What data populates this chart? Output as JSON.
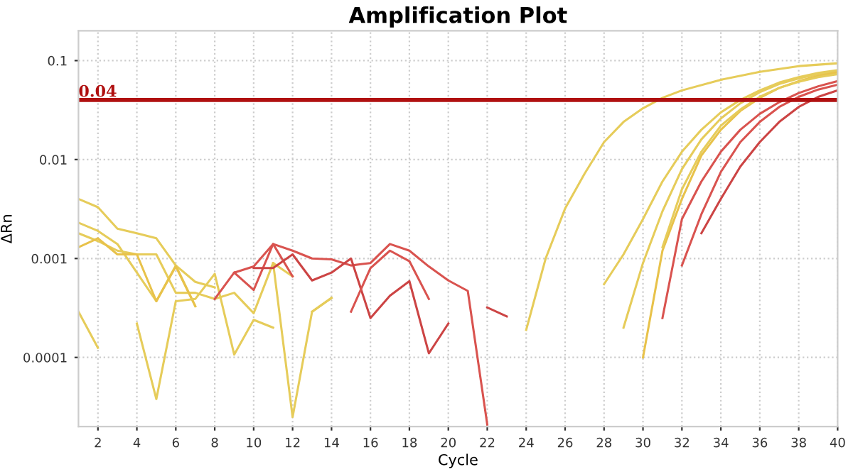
{
  "chart_data": {
    "type": "line",
    "title": "Amplification Plot",
    "xlabel": "Cycle",
    "ylabel": "ΔRn",
    "log": "y",
    "xlim": [
      1,
      40
    ],
    "ylim": [
      2e-05,
      0.2
    ],
    "xticks": [
      2,
      4,
      6,
      8,
      10,
      12,
      14,
      16,
      18,
      20,
      22,
      24,
      26,
      28,
      30,
      32,
      34,
      36,
      38,
      40
    ],
    "yticks": [
      0.0001,
      0.001,
      0.01,
      0.1
    ],
    "grid": true,
    "line_style": "solid",
    "ref_lines": [
      {
        "axis": "y",
        "value": 0.04,
        "label": "0.04",
        "color": "#b01010"
      }
    ],
    "series": [
      {
        "color": "#e6cc5a",
        "x": [
          1,
          2,
          3,
          4,
          5,
          6,
          7,
          8,
          9,
          10,
          11,
          12,
          13,
          14,
          15,
          16,
          17,
          18,
          19,
          20,
          21,
          22,
          23,
          24,
          25,
          26,
          27,
          28,
          29,
          30,
          31,
          32,
          34,
          36,
          38,
          40
        ],
        "values": [
          0.004,
          0.0033,
          0.002,
          0.0018,
          0.0016,
          0.00085,
          0.00033,
          null,
          null,
          null,
          null,
          null,
          null,
          null,
          null,
          null,
          null,
          null,
          null,
          null,
          null,
          null,
          null,
          0.00019,
          0.001,
          0.0032,
          0.0072,
          0.015,
          0.024,
          0.033,
          0.042,
          0.05,
          0.064,
          0.077,
          0.088,
          0.094
        ]
      },
      {
        "color": "#e6cc5a",
        "x": [
          1,
          2,
          3,
          4,
          5,
          6,
          7,
          8,
          9,
          28,
          29,
          30,
          31,
          32,
          33,
          34,
          35,
          36,
          37,
          38,
          39,
          40
        ],
        "values": [
          0.0023,
          0.0019,
          0.0014,
          0.00072,
          0.00037,
          0.00085,
          0.00058,
          0.00051,
          null,
          0.00055,
          0.0011,
          0.0025,
          0.006,
          0.012,
          0.02,
          0.03,
          0.04,
          0.05,
          0.06,
          0.068,
          0.075,
          0.08
        ]
      },
      {
        "color": "#e6cc5a",
        "x": [
          1,
          2,
          3,
          4,
          5,
          6,
          7,
          8,
          9,
          10,
          11,
          12,
          13,
          29,
          30,
          31,
          32,
          33,
          34,
          35,
          36,
          37,
          38,
          39,
          40
        ],
        "values": [
          0.0018,
          0.0015,
          0.0012,
          0.0011,
          0.0011,
          0.00045,
          0.00045,
          0.00039,
          0.00045,
          0.00028,
          0.0009,
          0.00066,
          null,
          0.0002,
          0.0009,
          0.003,
          0.008,
          0.016,
          0.026,
          0.037,
          0.048,
          0.058,
          0.066,
          0.073,
          0.079
        ]
      },
      {
        "color": "#e8c24a",
        "x": [
          1,
          2,
          3,
          4,
          5,
          6,
          7,
          8,
          30,
          31,
          32,
          33,
          34,
          35,
          36,
          37,
          38,
          39,
          40
        ],
        "values": [
          0.0013,
          0.0016,
          0.0011,
          0.0011,
          0.00037,
          0.00083,
          0.00033,
          null,
          0.0001,
          0.0012,
          0.004,
          0.011,
          0.02,
          0.031,
          0.042,
          0.053,
          0.062,
          0.07,
          0.076
        ]
      },
      {
        "color": "#e6cc5a",
        "x": [
          1,
          2,
          3,
          4,
          5,
          6,
          7,
          8,
          9,
          10,
          11,
          12,
          13,
          14,
          15,
          31,
          32,
          33,
          34,
          35,
          36,
          37,
          38,
          39,
          40
        ],
        "values": [
          0.00029,
          0.000125,
          null,
          0.00022,
          3.8e-05,
          0.00037,
          0.00039,
          0.0007,
          0.000107,
          0.00024,
          0.0002,
          null,
          0.00029,
          0.0004,
          null,
          0.0013,
          0.005,
          0.012,
          0.022,
          0.032,
          0.043,
          0.053,
          0.061,
          0.068,
          0.073
        ]
      },
      {
        "color": "#e6cc5a",
        "x": [
          11,
          12,
          13,
          14
        ],
        "values": [
          0.0009,
          2.5e-05,
          0.00029,
          0.0004
        ]
      },
      {
        "color": "#d9534f",
        "x": [
          8,
          9,
          10,
          11,
          12,
          13,
          31,
          32,
          33,
          34,
          35,
          36,
          37,
          38,
          39,
          40
        ],
        "values": [
          0.00039,
          0.00072,
          0.00083,
          0.0014,
          0.00066,
          null,
          0.00025,
          0.0025,
          0.006,
          0.012,
          0.02,
          0.029,
          0.038,
          0.047,
          0.055,
          0.062
        ]
      },
      {
        "color": "#d9534f",
        "x": [
          9,
          10,
          11,
          12,
          13,
          14,
          15,
          16,
          17,
          18,
          19,
          20,
          21,
          22,
          23,
          24,
          25,
          26,
          27,
          28,
          29,
          30,
          31,
          32,
          33,
          34,
          35,
          36,
          37,
          38,
          39,
          40
        ],
        "values": [
          0.00072,
          0.00048,
          0.0014,
          0.0012,
          0.001,
          0.00098,
          0.00085,
          0.0009,
          0.0014,
          0.0012,
          0.00083,
          0.0006,
          0.00047,
          2.1e-05,
          null,
          null,
          null,
          null,
          null,
          null,
          null,
          null,
          null,
          0.00085,
          0.0028,
          0.0075,
          0.015,
          0.024,
          0.034,
          0.043,
          0.051,
          0.057
        ]
      },
      {
        "color": "#cc4444",
        "x": [
          10,
          11,
          12,
          13,
          14,
          15,
          16,
          17,
          18,
          19,
          20,
          21,
          22,
          23,
          24,
          25,
          26,
          27,
          28,
          29,
          30,
          31,
          32,
          33,
          34,
          35,
          36,
          37,
          38,
          39,
          40
        ],
        "values": [
          0.0008,
          0.0008,
          0.0011,
          0.0006,
          0.00072,
          0.001,
          0.00025,
          0.00042,
          0.00059,
          0.00011,
          0.00022,
          null,
          0.00032,
          0.00026,
          null,
          null,
          null,
          null,
          null,
          null,
          null,
          null,
          null,
          0.0018,
          0.004,
          0.0085,
          0.015,
          0.024,
          0.034,
          0.043,
          0.05
        ]
      },
      {
        "color": "#d9534f",
        "x": [
          15,
          16,
          17,
          18,
          19
        ],
        "values": [
          0.00029,
          0.0008,
          0.0012,
          0.00094,
          0.00039
        ]
      }
    ]
  }
}
